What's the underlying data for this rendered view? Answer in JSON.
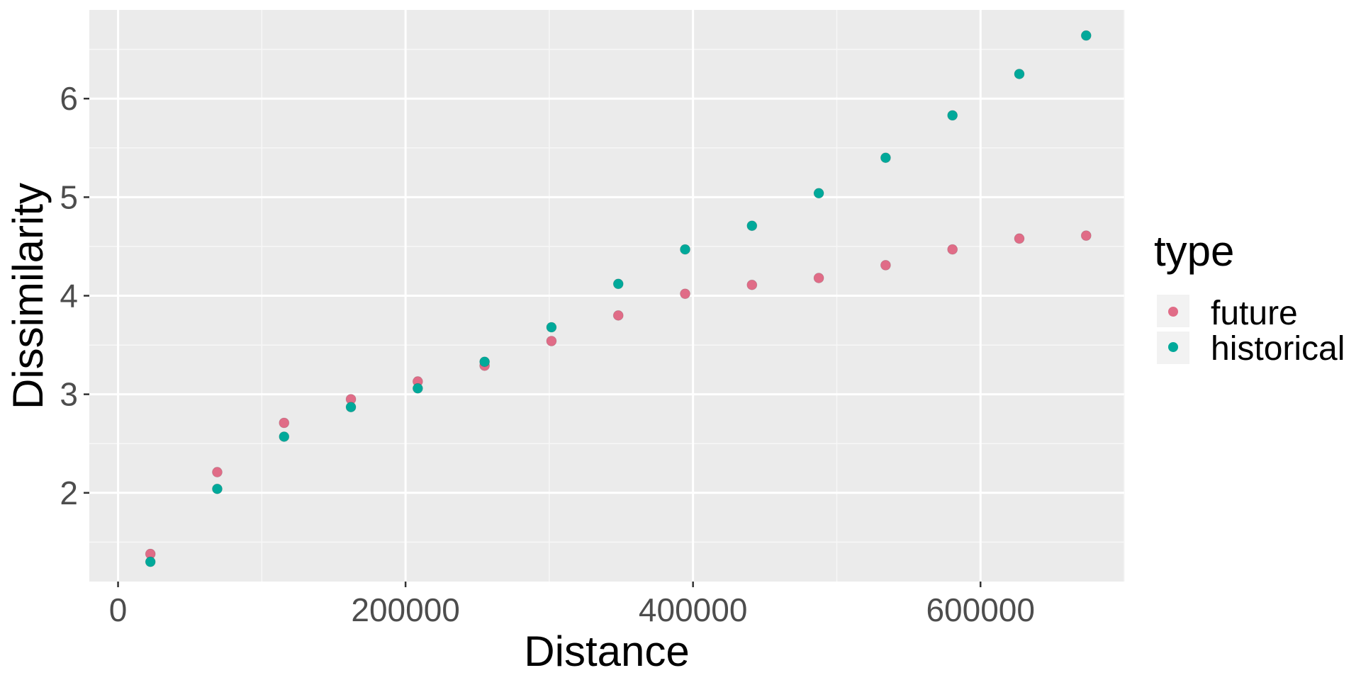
{
  "chart_data": {
    "type": "scatter",
    "xlabel": "Distance",
    "ylabel": "Dissimilarity",
    "xlim": [
      -20000,
      700000
    ],
    "ylim": [
      1.1,
      6.9
    ],
    "x_ticks": [
      0,
      200000,
      400000,
      600000
    ],
    "x_tick_labels": [
      "0",
      "200000",
      "400000",
      "600000"
    ],
    "x_minor_ticks": [
      100000,
      300000,
      500000,
      700000
    ],
    "y_ticks": [
      2,
      3,
      4,
      5,
      6
    ],
    "y_tick_labels": [
      "2",
      "3",
      "4",
      "5",
      "6"
    ],
    "y_minor_ticks": [
      1.5,
      2.5,
      3.5,
      4.5,
      5.5,
      6.5
    ],
    "grid": true,
    "background": "#ebebeb",
    "legend": {
      "title": "type",
      "position": "right"
    },
    "series": [
      {
        "name": "future",
        "color": "#e06c87",
        "x": [
          22500,
          69000,
          115500,
          162000,
          208500,
          255000,
          301500,
          348000,
          394500,
          441000,
          487500,
          534000,
          580500,
          627000,
          673500
        ],
        "y": [
          1.38,
          2.21,
          2.71,
          2.95,
          3.13,
          3.29,
          3.54,
          3.8,
          4.02,
          4.11,
          4.18,
          4.31,
          4.47,
          4.58,
          4.61
        ]
      },
      {
        "name": "historical",
        "color": "#00a99a",
        "x": [
          22500,
          69000,
          115500,
          162000,
          208500,
          255000,
          301500,
          348000,
          394500,
          441000,
          487500,
          534000,
          580500,
          627000,
          673500
        ],
        "y": [
          1.3,
          2.04,
          2.57,
          2.87,
          3.06,
          3.33,
          3.68,
          4.12,
          4.47,
          4.71,
          5.04,
          5.4,
          5.83,
          6.25,
          6.64
        ]
      }
    ]
  }
}
